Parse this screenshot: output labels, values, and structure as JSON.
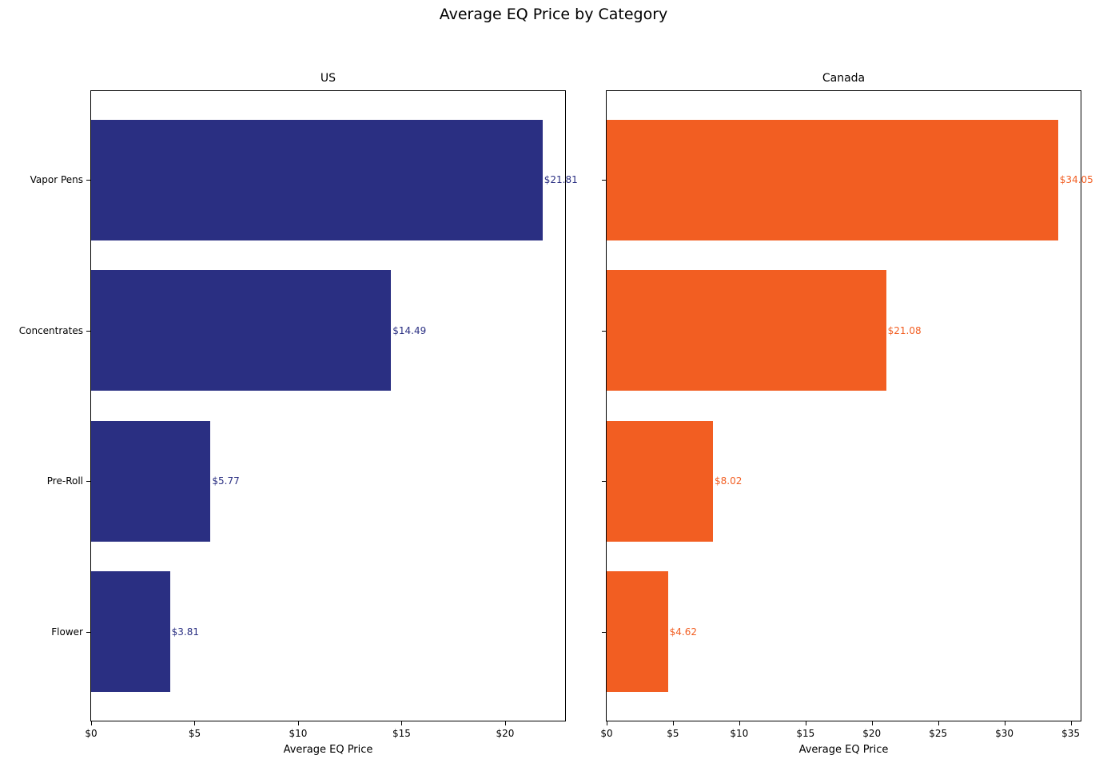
{
  "figure": {
    "title": "Average EQ Price by Category"
  },
  "chart_data": [
    {
      "type": "bar",
      "orientation": "horizontal",
      "title": "US",
      "xlabel": "Average EQ Price",
      "categories": [
        "Vapor Pens",
        "Concentrates",
        "Pre-Roll",
        "Flower"
      ],
      "values": [
        21.81,
        14.49,
        5.77,
        3.81
      ],
      "data_labels": [
        "$21.81",
        "$14.49",
        "$5.77",
        "$3.81"
      ],
      "bar_color": "#2a2f82",
      "xlim": [
        0,
        22.9
      ],
      "ylim": [
        -0.59,
        3.59
      ],
      "bar_height": 0.8,
      "x_tick_values": [
        0,
        5,
        10,
        15,
        20
      ],
      "x_tick_labels": [
        "$0",
        "$5",
        "$10",
        "$15",
        "$20"
      ],
      "y_tick_labels_visible": true,
      "grid": false,
      "legend": false
    },
    {
      "type": "bar",
      "orientation": "horizontal",
      "title": "Canada",
      "xlabel": "Average EQ Price",
      "categories": [
        "Vapor Pens",
        "Concentrates",
        "Pre-Roll",
        "Flower"
      ],
      "values": [
        34.05,
        21.08,
        8.02,
        4.62
      ],
      "data_labels": [
        "$34.05",
        "$21.08",
        "$8.02",
        "$4.62"
      ],
      "bar_color": "#f25e22",
      "xlim": [
        0,
        35.75
      ],
      "ylim": [
        -0.59,
        3.59
      ],
      "bar_height": 0.8,
      "x_tick_values": [
        0,
        5,
        10,
        15,
        20,
        25,
        30,
        35
      ],
      "x_tick_labels": [
        "$0",
        "$5",
        "$10",
        "$15",
        "$20",
        "$25",
        "$30",
        "$35"
      ],
      "y_tick_labels_visible": false,
      "grid": false,
      "legend": false
    }
  ]
}
